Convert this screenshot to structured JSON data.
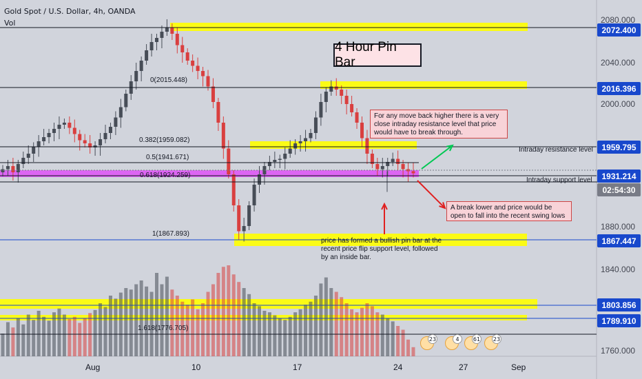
{
  "header": {
    "symbol": "Gold Spot / U.S. Dollar, 4h, OANDA",
    "vol_label": "Vol"
  },
  "title_box": "4 Hour Pin Bar",
  "annotations": {
    "resistance_note": "For any move back higher there is a very close intraday resistance level that price would have to break through.",
    "lower_note": "A break lower and price would be open to fall into the recent swing lows",
    "pinbar_note": "price has formed a bullish pin bar at the recent price flip support level, followed by an inside bar.",
    "intraday_resistance": "Intraday resistance level",
    "intraday_support": "Intraday support level"
  },
  "fib_levels": [
    {
      "label": "0(2015.448)"
    },
    {
      "label": "0.382(1959.082)"
    },
    {
      "label": "0.5(1941.671)"
    },
    {
      "label": "0.618(1924.259)"
    },
    {
      "label": "1(1867.893)"
    },
    {
      "label": "1.618(1776.705)"
    }
  ],
  "price_tags": [
    {
      "text": "2072.400",
      "color": "#1848cc"
    },
    {
      "text": "2016.396",
      "color": "#1848cc"
    },
    {
      "text": "1959.795",
      "color": "#1848cc"
    },
    {
      "text": "1931.214",
      "color": "#1848cc"
    },
    {
      "text": "02:54:30",
      "color": "#787b86"
    },
    {
      "text": "1867.447",
      "color": "#1848cc"
    },
    {
      "text": "1803.856",
      "color": "#1848cc"
    },
    {
      "text": "1789.910",
      "color": "#1848cc"
    }
  ],
  "y_axis_labels": [
    "2080.000",
    "2040.000",
    "2000.000",
    "1880.000",
    "1840.000",
    "1760.000"
  ],
  "x_axis_labels": [
    "Aug",
    "10",
    "17",
    "24",
    "27",
    "Sep"
  ],
  "event_counts": [
    "23",
    "4",
    "61",
    "23"
  ],
  "colors": {
    "background": "#d1d4dc",
    "bull_candle": "#474d57",
    "bear_candle": "#d93f3f",
    "zone_yellow": "#ffff00",
    "zone_magenta": "#e040fb",
    "level_line": "#1848cc",
    "arrow_green": "#00c853",
    "arrow_red": "#e02020"
  },
  "chart_data": {
    "type": "candlestick",
    "title": "Gold Spot / U.S. Dollar, 4h, OANDA",
    "y_range": [
      1760,
      2090
    ],
    "x_ticks": [
      "Aug",
      "10",
      "17",
      "24",
      "27",
      "Sep"
    ],
    "horizontal_levels": [
      2072.4,
      2016.396,
      1959.795,
      1931.214,
      1867.447,
      1803.856,
      1789.91
    ],
    "price_series_close": [
      1935,
      1938,
      1932,
      1940,
      1946,
      1950,
      1957,
      1962,
      1966,
      1970,
      1974,
      1978,
      1980,
      1975,
      1969,
      1963,
      1960,
      1956,
      1958,
      1964,
      1970,
      1976,
      1985,
      1995,
      2008,
      2020,
      2030,
      2040,
      2050,
      2058,
      2062,
      2068,
      2072,
      2066,
      2055,
      2048,
      2040,
      2035,
      2030,
      2025,
      2015,
      2000,
      1980,
      1955,
      1930,
      1900,
      1875,
      1880,
      1900,
      1920,
      1930,
      1938,
      1942,
      1944,
      1945,
      1950,
      1955,
      1960,
      1962,
      1965,
      1970,
      1985,
      2000,
      2010,
      2015,
      2012,
      2006,
      1998,
      1990,
      1980,
      1965,
      1950,
      1940,
      1935,
      1938,
      1942,
      1945,
      1940,
      1935,
      1933,
      1931
    ],
    "volume_series": [
      30,
      45,
      38,
      50,
      42,
      55,
      48,
      60,
      52,
      47,
      58,
      63,
      55,
      49,
      52,
      44,
      50,
      57,
      61,
      70,
      65,
      80,
      76,
      84,
      90,
      88,
      95,
      100,
      92,
      85,
      110,
      95,
      105,
      88,
      80,
      72,
      68,
      75,
      62,
      70,
      85,
      95,
      110,
      118,
      120,
      108,
      98,
      90,
      82,
      70,
      66,
      60,
      58,
      54,
      50,
      48,
      52,
      58,
      62,
      68,
      72,
      80,
      96,
      104,
      90,
      85,
      78,
      70,
      62,
      58,
      64,
      70,
      66,
      58,
      55,
      50,
      46,
      40,
      35,
      22,
      12
    ]
  }
}
